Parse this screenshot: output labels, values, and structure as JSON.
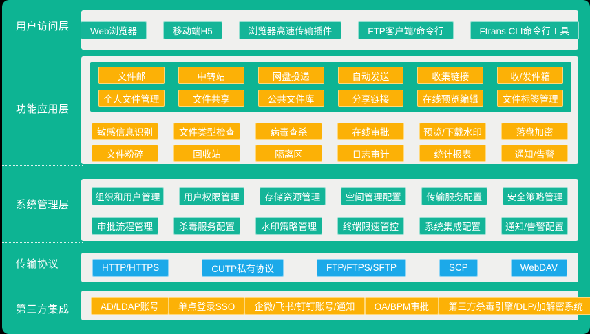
{
  "title": "文件传输系统架构图",
  "colors": {
    "background_teal": "#0db493",
    "teal_box": "#14b598",
    "orange_box": "#fcb106",
    "orange_border": "#ffd87a",
    "blue_box": "#1ca9e9",
    "card_background": "#f0f0ee",
    "text": "#ffffff"
  },
  "layers": [
    {
      "label": "用户访问层",
      "items": [
        "Web浏览器",
        "移动端H5",
        "浏览器高速传输插件",
        "FTP客户端/命令行",
        "Ftrans CLI命令行工具"
      ]
    },
    {
      "label": "功能应用层",
      "container_rows": [
        [
          "文件邮",
          "中转站",
          "网盘投递",
          "自动发送",
          "收集链接",
          "收/发件箱"
        ],
        [
          "个人文件管理",
          "文件共享",
          "公共文件库",
          "分享链接",
          "在线预览编辑",
          "文件标签管理"
        ]
      ],
      "rows": [
        [
          "敏感信息识别",
          "文件类型检查",
          "病毒查杀",
          "在线审批",
          "预览/下载水印",
          "落盘加密"
        ],
        [
          "文件粉碎",
          "回收站",
          "隔离区",
          "日志审计",
          "统计报表",
          "通知/告警"
        ]
      ]
    },
    {
      "label": "系统管理层",
      "rows": [
        [
          "组织和用户管理",
          "用户权限管理",
          "存储资源管理",
          "空间管理配置",
          "传输服务配置",
          "安全策略管理"
        ],
        [
          "审批流程管理",
          "杀毒服务配置",
          "水印策略管理",
          "终端限速管控",
          "系统集成配置",
          "通知/告警配置"
        ]
      ]
    },
    {
      "label": "传输协议",
      "items": [
        "HTTP/HTTPS",
        "CUTP私有协议",
        "FTP/FTPS/SFTP",
        "SCP",
        "WebDAV"
      ]
    },
    {
      "label": "第三方集成",
      "items": [
        "AD/LDAP账号",
        "单点登录SSO",
        "企微/飞书/钉钉账号/通知",
        "OA/BPM审批",
        "第三方杀毒引擎/DLP/加解密系统"
      ]
    }
  ]
}
